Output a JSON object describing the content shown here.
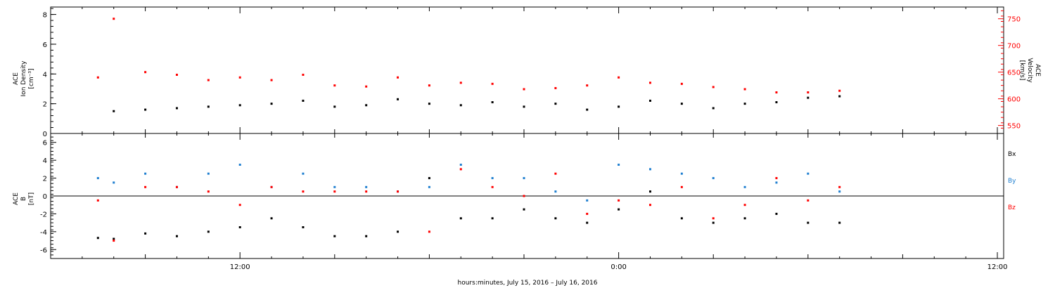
{
  "chart_data": [
    {
      "type": "scatter",
      "panel": "top",
      "left_axis": {
        "label_lines": [
          "ACE",
          "Ion Density",
          "[cm⁻³]"
        ],
        "ylim": [
          0,
          8.5
        ],
        "ticks": [
          "0",
          "2",
          "4",
          "6",
          "8"
        ]
      },
      "right_axis": {
        "label_lines": [
          "ACE",
          "Velocity",
          "[km/s]"
        ],
        "ylim": [
          535,
          772
        ],
        "ticks": [
          "550",
          "600",
          "650",
          "700",
          "750"
        ],
        "color": "#ff0000"
      },
      "series": [
        {
          "axis": "left",
          "color": "#000000",
          "x": [
            8.0,
            9.0,
            10.0,
            11.0,
            12.0,
            13.0,
            14.0,
            15.0,
            16.0,
            17.0,
            18.0,
            19.0,
            20.0,
            21.0,
            22.0,
            23.0,
            24.0,
            25.0,
            26.0,
            27.0,
            28.0,
            29.0,
            30.0,
            31.0
          ],
          "values": [
            1.5,
            1.6,
            1.7,
            1.8,
            1.9,
            2.0,
            2.2,
            1.8,
            1.9,
            2.3,
            2.0,
            1.9,
            2.1,
            1.8,
            2.0,
            1.6,
            1.8,
            2.2,
            2.0,
            1.7,
            2.0,
            2.1,
            2.4,
            2.5
          ]
        },
        {
          "axis": "right",
          "color": "#ff0000",
          "x": [
            7.5,
            8.0,
            9.0,
            10.0,
            11.0,
            12.0,
            13.0,
            14.0,
            15.0,
            16.0,
            17.0,
            18.0,
            19.0,
            20.0,
            21.0,
            22.0,
            23.0,
            24.0,
            25.0,
            26.0,
            27.0,
            28.0,
            29.0,
            30.0,
            31.0
          ],
          "values": [
            640,
            750,
            650,
            645,
            635,
            640,
            635,
            645,
            625,
            623,
            640,
            625,
            630,
            628,
            618,
            620,
            625,
            640,
            630,
            628,
            622,
            618,
            612,
            612,
            615
          ]
        }
      ]
    },
    {
      "type": "scatter",
      "panel": "bottom",
      "left_axis": {
        "label_lines": [
          "ACE",
          "B",
          "[nT]"
        ],
        "ylim": [
          -7,
          7
        ],
        "ticks": [
          "-6",
          "-4",
          "-2",
          "0",
          "2",
          "4",
          "6"
        ]
      },
      "legend": [
        "Bx",
        "By",
        "Bz"
      ],
      "series": [
        {
          "name": "Bx",
          "color": "#000000",
          "x": [
            7.5,
            8.0,
            9.0,
            10.0,
            11.0,
            12.0,
            13.0,
            14.0,
            15.0,
            16.0,
            17.0,
            18.0,
            19.0,
            20.0,
            21.0,
            22.0,
            23.0,
            24.0,
            25.0,
            26.0,
            27.0,
            28.0,
            29.0,
            30.0,
            31.0
          ],
          "values": [
            -4.7,
            -4.8,
            -4.2,
            -4.5,
            -4.0,
            -3.5,
            -2.5,
            -3.5,
            -4.5,
            -4.5,
            -4.0,
            2.0,
            -2.5,
            -2.5,
            -1.5,
            -2.5,
            -3.0,
            -1.5,
            0.5,
            -2.5,
            -3.0,
            -2.5,
            -2.0,
            -3.0,
            -3.0
          ]
        },
        {
          "name": "By",
          "color": "#1f7fd0",
          "x": [
            7.5,
            8.0,
            9.0,
            10.0,
            11.0,
            12.0,
            13.0,
            14.0,
            15.0,
            16.0,
            17.0,
            18.0,
            19.0,
            20.0,
            21.0,
            22.0,
            23.0,
            24.0,
            25.0,
            26.0,
            27.0,
            28.0,
            29.0,
            30.0,
            31.0
          ],
          "values": [
            2.0,
            1.5,
            2.5,
            1.0,
            2.5,
            3.5,
            1.0,
            2.5,
            1.0,
            1.0,
            0.5,
            1.0,
            3.5,
            2.0,
            2.0,
            0.5,
            -0.5,
            3.5,
            3.0,
            2.5,
            2.0,
            1.0,
            1.5,
            2.5,
            0.5
          ]
        },
        {
          "name": "Bz",
          "color": "#ff0000",
          "x": [
            7.5,
            8.0,
            9.0,
            10.0,
            11.0,
            12.0,
            13.0,
            14.0,
            15.0,
            16.0,
            17.0,
            18.0,
            19.0,
            20.0,
            21.0,
            22.0,
            23.0,
            24.0,
            25.0,
            26.0,
            27.0,
            28.0,
            29.0,
            30.0,
            31.0
          ],
          "values": [
            -0.5,
            -5.0,
            1.0,
            1.0,
            0.5,
            -1.0,
            1.0,
            0.5,
            0.5,
            0.5,
            0.5,
            -4.0,
            3.0,
            1.0,
            0.0,
            2.5,
            -2.0,
            -0.5,
            -1.0,
            1.0,
            -2.5,
            -1.0,
            2.0,
            -0.5,
            1.0
          ]
        }
      ]
    }
  ],
  "x_axis": {
    "xlim": [
      6.0,
      36.2
    ],
    "major_tick_hours": [
      12,
      24,
      36
    ],
    "tick_labels": [
      "12:00",
      "0:00",
      "12:00"
    ],
    "label": "hours:minutes, July 15, 2016 – July 16, 2016"
  }
}
